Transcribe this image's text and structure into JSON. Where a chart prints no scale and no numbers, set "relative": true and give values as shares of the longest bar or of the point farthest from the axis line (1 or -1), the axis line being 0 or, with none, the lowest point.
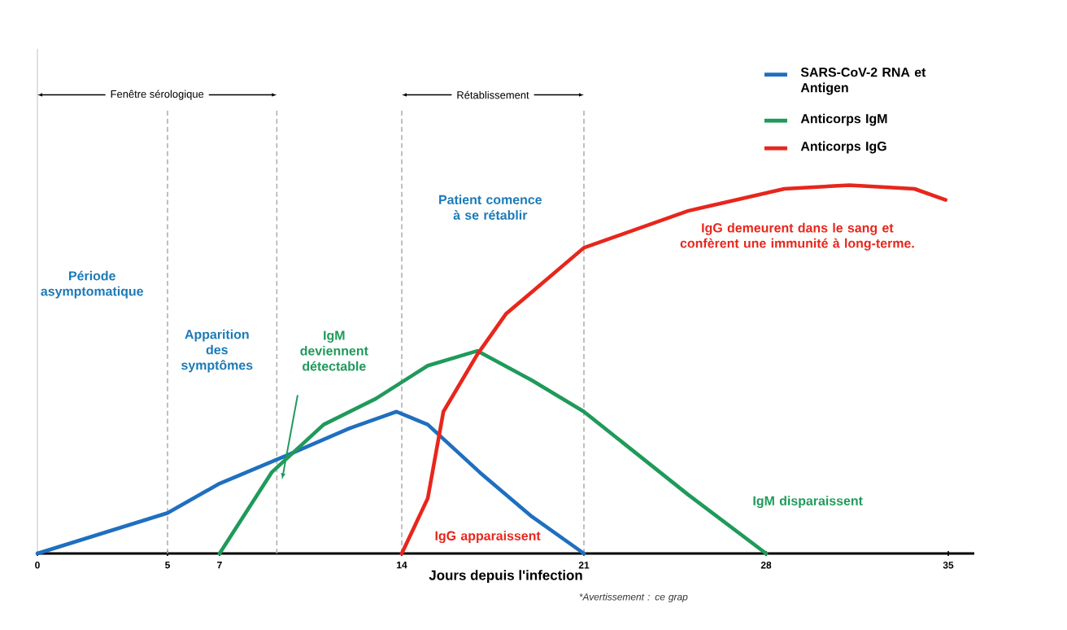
{
  "chart_data": {
    "type": "line",
    "relative": true,
    "xlabel": "Jours depuis l'infection",
    "xlim": [
      0,
      36
    ],
    "xticks": [
      0,
      5,
      7,
      14,
      21,
      28,
      35
    ],
    "series": [
      {
        "name": "SARS-CoV-2 RNA et Antigen",
        "color": "#1f6fbf",
        "x": [
          0,
          5,
          7,
          9.7,
          12,
          13.8,
          15,
          17,
          19,
          21
        ],
        "values": [
          0,
          0.11,
          0.19,
          0.27,
          0.34,
          0.385,
          0.35,
          0.22,
          0.1,
          0
        ]
      },
      {
        "name": "Anticorps IgM",
        "color": "#1f9a5a",
        "x": [
          7,
          9,
          11,
          13,
          15,
          16.9,
          19,
          21,
          25,
          28
        ],
        "values": [
          0,
          0.22,
          0.35,
          0.42,
          0.51,
          0.55,
          0.47,
          0.385,
          0.16,
          0
        ]
      },
      {
        "name": "Anticorps IgG",
        "color": "#e8261c",
        "x": [
          14,
          15,
          15.6,
          16.9,
          18,
          19,
          21,
          25,
          28.7,
          31.2,
          33.7,
          34.9
        ],
        "values": [
          0,
          0.15,
          0.385,
          0.54,
          0.65,
          0.71,
          0.83,
          0.93,
          0.99,
          1,
          0.99,
          0.96
        ]
      }
    ],
    "ref_lines": [
      {
        "axis": "x",
        "value": 5,
        "line_style": "dashed",
        "color": "#b0b0b0"
      },
      {
        "axis": "x",
        "value": 9.2,
        "line_style": "dashed",
        "color": "#b0b0b0"
      },
      {
        "axis": "x",
        "value": 14,
        "line_style": "dashed",
        "color": "#b0b0b0"
      },
      {
        "axis": "x",
        "value": 21,
        "line_style": "dashed",
        "color": "#b0b0b0"
      }
    ],
    "annotations": [
      "Période asymptomatique",
      "Apparition des symptômes",
      "IgM deviennent détectable",
      "Patient comence à se rétablir",
      "IgG demeurent dans le sang et confèrent une immunité à long-terme.",
      "IgG apparaissent",
      "IgM disparaissent",
      "*Avertissement : ce grap",
      "Fenêtre sérologique",
      "Rétablissement"
    ],
    "legend": "top right"
  }
}
